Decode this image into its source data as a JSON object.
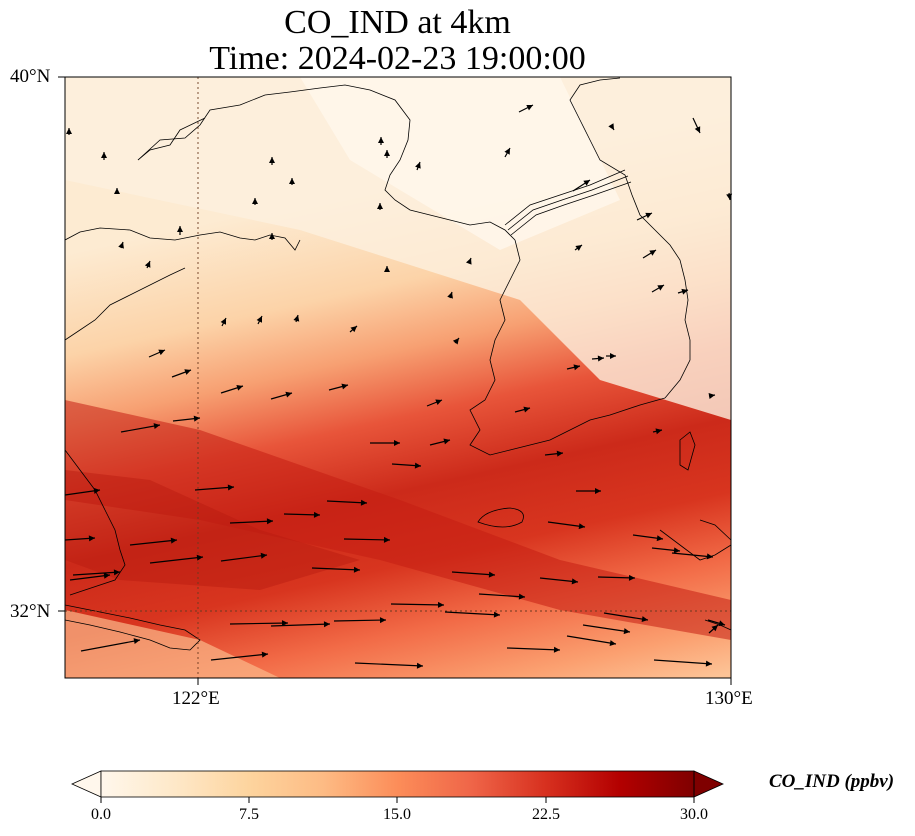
{
  "title": {
    "line1": "CO_IND at 4km",
    "line2": "Time: 2024-02-23 19:00:00"
  },
  "axes": {
    "lat_ticks": [
      "40°N",
      "32°N"
    ],
    "lon_ticks": [
      "122°E",
      "130°E"
    ],
    "lon_range": [
      120,
      130
    ],
    "lat_range": [
      31,
      40
    ],
    "gridlines": "dotted at 122°E and 32°N"
  },
  "colorbar": {
    "label": "CO_IND (ppbv)",
    "ticks": [
      "0.0",
      "7.5",
      "15.0",
      "22.5",
      "30.0"
    ],
    "range": [
      0,
      30
    ],
    "extend": "both",
    "colormap": "OrRd",
    "colors": [
      "#fff7ec",
      "#fee8c8",
      "#fdd49e",
      "#fdbb84",
      "#fc8d59",
      "#ef6548",
      "#d7301f",
      "#b30000",
      "#7f0000"
    ]
  },
  "chart_data": {
    "type": "heatmap",
    "variable": "CO_IND",
    "units": "ppbv",
    "level": "4km",
    "time": "2024-02-23 19:00:00",
    "pattern": "high-concentration band (≈20–25 ppbv) oriented WNW–ESE from the East China coast (~32–35°N, 120°E) toward southern Korea/Jeju region; low values (<5 ppbv) over Bohai and northern Korea",
    "wind_vectors": "westerly to west-southwesterly flow, strongest (long arrows) in the southern half of the domain"
  }
}
